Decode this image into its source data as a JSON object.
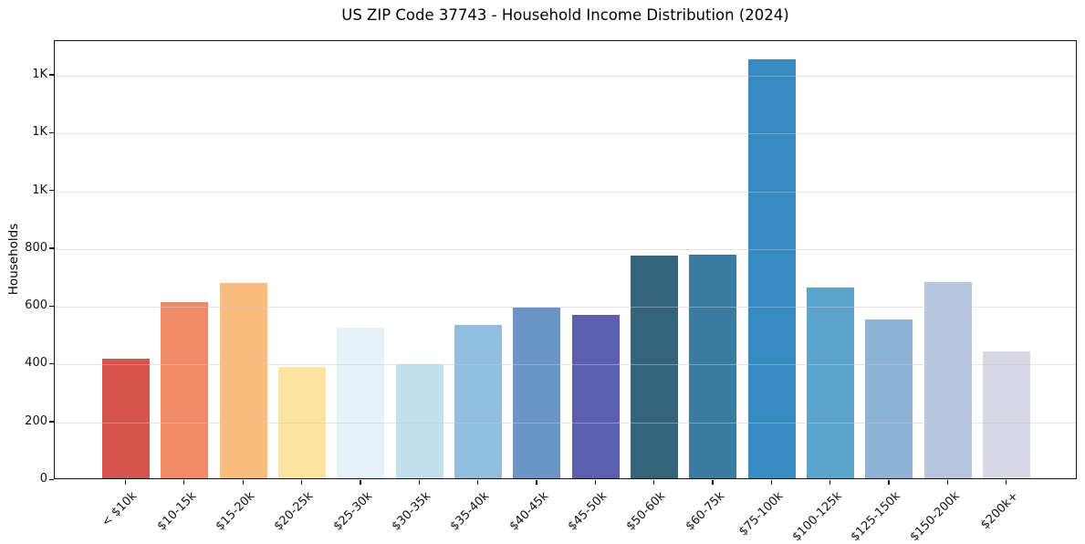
{
  "chart_data": {
    "type": "bar",
    "title": "US ZIP Code 37743 - Household Income Distribution (2024)",
    "xlabel": "",
    "ylabel": "Households",
    "categories": [
      "< $10k",
      "$10-15k",
      "$15-20k",
      "$20-25k",
      "$25-30k",
      "$30-35k",
      "$35-40k",
      "$40-45k",
      "$45-50k",
      "$50-60k",
      "$60-75k",
      "$75-100k",
      "$100-125k",
      "$125-150k",
      "$150-200k",
      "$200k+"
    ],
    "values": [
      415,
      610,
      675,
      385,
      520,
      395,
      530,
      590,
      565,
      770,
      775,
      1450,
      660,
      550,
      680,
      440
    ],
    "bar_colors": [
      "#d6544e",
      "#f18a66",
      "#fabd7e",
      "#fde5a1",
      "#e6f2f7",
      "#c2e1ec",
      "#92bedd",
      "#6b94c7",
      "#5c5fae",
      "#35637a",
      "#3a7ca1",
      "#378bc0",
      "#5ba3c9",
      "#8fb3d6",
      "#b8c6e0",
      "#d8d8e6"
    ],
    "ylim": [
      0,
      1520
    ],
    "yticks": [
      {
        "value": 0,
        "label": "0"
      },
      {
        "value": 200,
        "label": "200"
      },
      {
        "value": 400,
        "label": "400"
      },
      {
        "value": 600,
        "label": "600"
      },
      {
        "value": 800,
        "label": "800"
      },
      {
        "value": 1000,
        "label": "1K"
      },
      {
        "value": 1200,
        "label": "1K"
      },
      {
        "value": 1400,
        "label": "1K"
      }
    ],
    "grid": "horizontal",
    "legend": "none",
    "background_color": "#ffffff",
    "gridline_color": "#e9e9ed",
    "spine_color": "#111111",
    "text_color": "#111111"
  }
}
